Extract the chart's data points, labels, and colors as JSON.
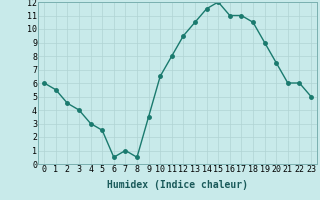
{
  "x": [
    0,
    1,
    2,
    3,
    4,
    5,
    6,
    7,
    8,
    9,
    10,
    11,
    12,
    13,
    14,
    15,
    16,
    17,
    18,
    19,
    20,
    21,
    22,
    23
  ],
  "y": [
    6,
    5.5,
    4.5,
    4,
    3,
    2.5,
    0.5,
    1,
    0.5,
    3.5,
    6.5,
    8,
    9.5,
    10.5,
    11.5,
    12,
    11,
    11,
    10.5,
    9,
    7.5,
    6,
    6,
    5
  ],
  "line_color": "#1a7a6e",
  "marker_color": "#1a7a6e",
  "bg_color": "#c8eaea",
  "grid_color": "#b0d4d4",
  "xlabel": "Humidex (Indice chaleur)",
  "xlim": [
    -0.5,
    23.5
  ],
  "ylim": [
    0,
    12
  ],
  "xticks": [
    0,
    1,
    2,
    3,
    4,
    5,
    6,
    7,
    8,
    9,
    10,
    11,
    12,
    13,
    14,
    15,
    16,
    17,
    18,
    19,
    20,
    21,
    22,
    23
  ],
  "yticks": [
    0,
    1,
    2,
    3,
    4,
    5,
    6,
    7,
    8,
    9,
    10,
    11,
    12
  ],
  "xlabel_fontsize": 7,
  "tick_fontsize": 6,
  "linewidth": 1.0,
  "markersize": 2.5
}
